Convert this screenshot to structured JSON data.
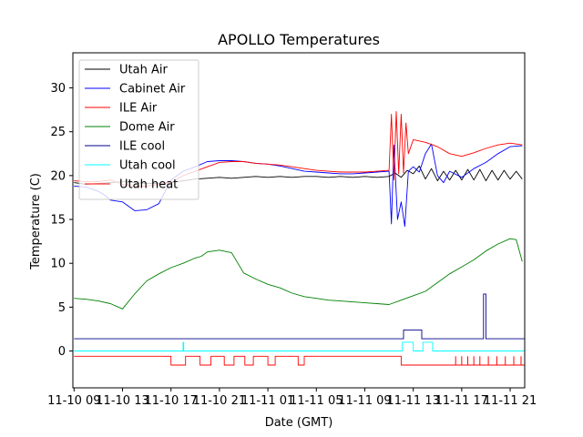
{
  "chart_data": {
    "type": "line",
    "title": "APOLLO Temperatures",
    "xlabel": "Date (GMT)",
    "ylabel": "Temperature (C)",
    "xlim": [
      -0.1,
      37.2
    ],
    "ylim": [
      -4.2,
      34
    ],
    "x_ticks": [
      0,
      4,
      8,
      12,
      16,
      20,
      24,
      28,
      32,
      36
    ],
    "x_tick_labels": [
      "11-10 09",
      "11-10 13",
      "11-10 17",
      "11-10 21",
      "11-11 01",
      "11-11 05",
      "11-11 09",
      "11-11 13",
      "11-11 17",
      "11-11 21"
    ],
    "y_ticks": [
      0,
      5,
      10,
      15,
      20,
      25,
      30
    ],
    "y_tick_labels": [
      "0",
      "5",
      "10",
      "15",
      "20",
      "25",
      "30"
    ],
    "grid": false,
    "legend_position": "upper-left",
    "series": [
      {
        "name": "Utah Air",
        "color": "#000000",
        "x": [
          0,
          1,
          2,
          3,
          4,
          5,
          6,
          7,
          8,
          9,
          10,
          11,
          12,
          13,
          14,
          15,
          16,
          17,
          18,
          19,
          20,
          21,
          22,
          23,
          24,
          25,
          26,
          26.5,
          27,
          27.5,
          28,
          28.5,
          29,
          29.5,
          30,
          30.5,
          31,
          31.5,
          32,
          32.5,
          33,
          33.5,
          34,
          34.5,
          35,
          35.5,
          36,
          36.5,
          37
        ],
        "y": [
          19.2,
          19.0,
          19.1,
          19.2,
          19.3,
          19.2,
          19.1,
          19.1,
          19.2,
          19.4,
          19.6,
          19.7,
          19.8,
          19.7,
          19.8,
          19.9,
          19.8,
          19.9,
          19.8,
          19.9,
          19.9,
          19.8,
          19.9,
          19.8,
          19.9,
          19.8,
          19.9,
          20.3,
          19.8,
          20.6,
          20.2,
          21.1,
          19.6,
          20.8,
          19.4,
          20.5,
          19.5,
          20.6,
          19.5,
          20.7,
          19.5,
          20.7,
          19.4,
          20.6,
          19.5,
          20.6,
          19.6,
          20.5,
          19.6
        ]
      },
      {
        "name": "Cabinet Air",
        "color": "#0000ff",
        "x": [
          0,
          1,
          2,
          2.5,
          3,
          4,
          5,
          6,
          7,
          8,
          9,
          10,
          11,
          12,
          13,
          14,
          15,
          16,
          17,
          18,
          19,
          20,
          21,
          22,
          23,
          24,
          25,
          26,
          26.2,
          26.4,
          26.7,
          27,
          27.3,
          27.6,
          28,
          28.5,
          29,
          29.5,
          30,
          30.5,
          31,
          32,
          33,
          34,
          35,
          36,
          37
        ],
        "y": [
          18.8,
          18.7,
          18.2,
          17.8,
          17.2,
          17.0,
          16.0,
          16.1,
          16.8,
          19.5,
          20.5,
          21.0,
          21.6,
          21.7,
          21.7,
          21.6,
          21.4,
          21.3,
          21.1,
          20.8,
          20.5,
          20.4,
          20.3,
          20.2,
          20.2,
          20.3,
          20.4,
          20.5,
          14.5,
          23.5,
          15.0,
          17.0,
          14.2,
          20.5,
          21.0,
          20.4,
          22.5,
          23.6,
          20.0,
          19.2,
          20.5,
          19.8,
          20.8,
          21.5,
          22.5,
          23.3,
          23.4
        ]
      },
      {
        "name": "ILE Air",
        "color": "#ff0000",
        "x": [
          0,
          1,
          2,
          3,
          4,
          5,
          6,
          7,
          8,
          9,
          10,
          11,
          12,
          13,
          14,
          15,
          16,
          17,
          18,
          19,
          20,
          21,
          22,
          23,
          24,
          25,
          26,
          26.2,
          26.4,
          26.6,
          26.8,
          27,
          27.2,
          27.4,
          27.6,
          28,
          29,
          30,
          31,
          32,
          33,
          34,
          35,
          36,
          37
        ],
        "y": [
          19.4,
          19.3,
          19.3,
          19.5,
          19.0,
          18.8,
          18.8,
          19.0,
          19.2,
          20.0,
          20.5,
          21.0,
          21.5,
          21.6,
          21.6,
          21.4,
          21.3,
          21.2,
          21.0,
          20.8,
          20.6,
          20.5,
          20.4,
          20.4,
          20.4,
          20.5,
          20.6,
          27.0,
          19.5,
          27.3,
          20.2,
          27.0,
          20.3,
          26.0,
          22.5,
          24.1,
          23.8,
          23.3,
          22.5,
          22.2,
          22.6,
          23.1,
          23.5,
          23.7,
          23.5
        ]
      },
      {
        "name": "Dome Air",
        "color": "#008000",
        "x": [
          0,
          1,
          2,
          3,
          4,
          5,
          6,
          7,
          8,
          9,
          10,
          10.5,
          11,
          12,
          13,
          14,
          15,
          16,
          17,
          18,
          19,
          20,
          21,
          22,
          23,
          24,
          25,
          26,
          27,
          28,
          29,
          30,
          31,
          32,
          33,
          34,
          35,
          36,
          36.5,
          37
        ],
        "y": [
          6.0,
          5.9,
          5.7,
          5.4,
          4.8,
          6.5,
          8.0,
          8.8,
          9.5,
          10.0,
          10.6,
          10.8,
          11.3,
          11.5,
          11.2,
          8.9,
          8.2,
          7.6,
          7.2,
          6.6,
          6.2,
          6.0,
          5.8,
          5.7,
          5.6,
          5.5,
          5.4,
          5.3,
          5.8,
          6.3,
          6.8,
          7.8,
          8.8,
          9.6,
          10.4,
          11.4,
          12.2,
          12.8,
          12.7,
          10.2
        ]
      },
      {
        "name": "ILE cool",
        "color": "#00008b",
        "x": [
          0,
          27.2,
          27.2,
          28.7,
          28.7,
          33.8,
          33.8,
          34.0,
          34.0,
          37.2
        ],
        "y": [
          1.4,
          1.4,
          2.4,
          2.4,
          1.4,
          1.4,
          6.5,
          6.5,
          1.4,
          1.4
        ]
      },
      {
        "name": "Utah cool",
        "color": "#00ffff",
        "x": [
          0,
          9.0,
          9.0,
          9.05,
          9.05,
          27.1,
          27.1,
          28.0,
          28.0,
          28.8,
          28.8,
          29.6,
          29.6,
          37.2
        ],
        "y": [
          0,
          0,
          1.0,
          1.0,
          0,
          0,
          1.0,
          1.0,
          0,
          0,
          1.0,
          1.0,
          0,
          0
        ]
      },
      {
        "name": "Utah heat",
        "color": "#ff0000",
        "x": [
          0,
          8.0,
          8.0,
          9.2,
          9.2,
          10.4,
          10.4,
          11.3,
          11.3,
          12.4,
          12.4,
          13.2,
          13.2,
          14.1,
          14.1,
          14.8,
          14.8,
          16.0,
          16.0,
          16.6,
          16.6,
          18.5,
          18.5,
          19.0,
          19.0,
          27.0,
          27.0,
          37.2
        ],
        "y": [
          -0.6,
          -0.6,
          -1.6,
          -1.6,
          -0.6,
          -0.6,
          -1.6,
          -1.6,
          -0.6,
          -0.6,
          -1.6,
          -1.6,
          -0.6,
          -0.6,
          -1.6,
          -1.6,
          -0.6,
          -0.6,
          -1.6,
          -1.6,
          -0.6,
          -0.6,
          -1.6,
          -1.6,
          -0.6,
          -0.6,
          -1.6,
          -1.6
        ]
      }
    ],
    "utah_heat_spikes": [
      31.5,
      32.0,
      32.5,
      33.0,
      33.5,
      34.2,
      34.9,
      35.6,
      36.3,
      36.9
    ]
  }
}
